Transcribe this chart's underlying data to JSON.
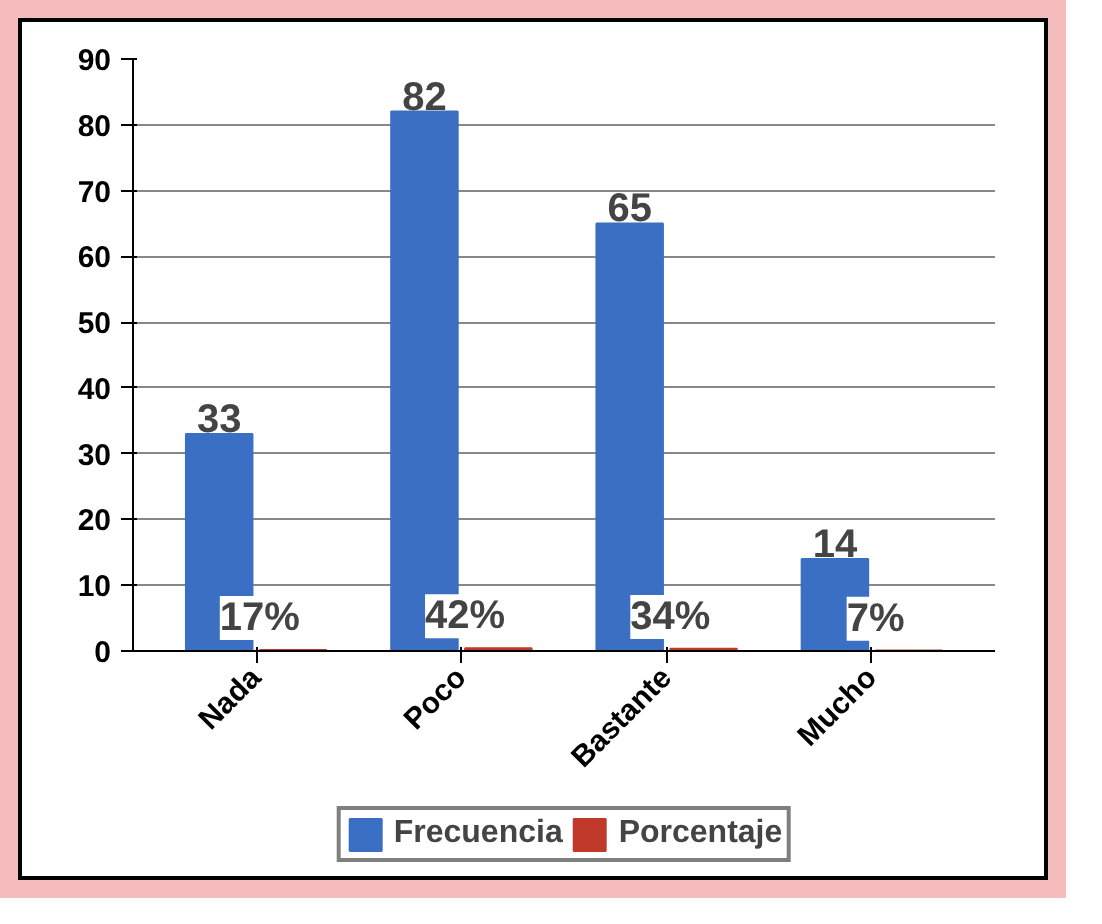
{
  "chart_data": {
    "type": "bar",
    "categories": [
      "Nada",
      "Poco",
      "Bastante",
      "Mucho"
    ],
    "series": [
      {
        "name": "Frecuencia",
        "color": "#3a6fc4",
        "values": [
          33,
          82,
          65,
          14
        ],
        "value_labels": [
          "33",
          "82",
          "65",
          "14"
        ]
      },
      {
        "name": "Porcentaje",
        "color": "#c0392b",
        "values": [
          0.17,
          0.42,
          0.34,
          0.07
        ],
        "value_labels": [
          "17%",
          "42%",
          "34%",
          "7%"
        ]
      }
    ],
    "ylim": [
      0,
      90
    ],
    "yticks": [
      0,
      10,
      20,
      30,
      40,
      50,
      60,
      70,
      80,
      90
    ],
    "grid": "y",
    "legend": "bottom"
  }
}
